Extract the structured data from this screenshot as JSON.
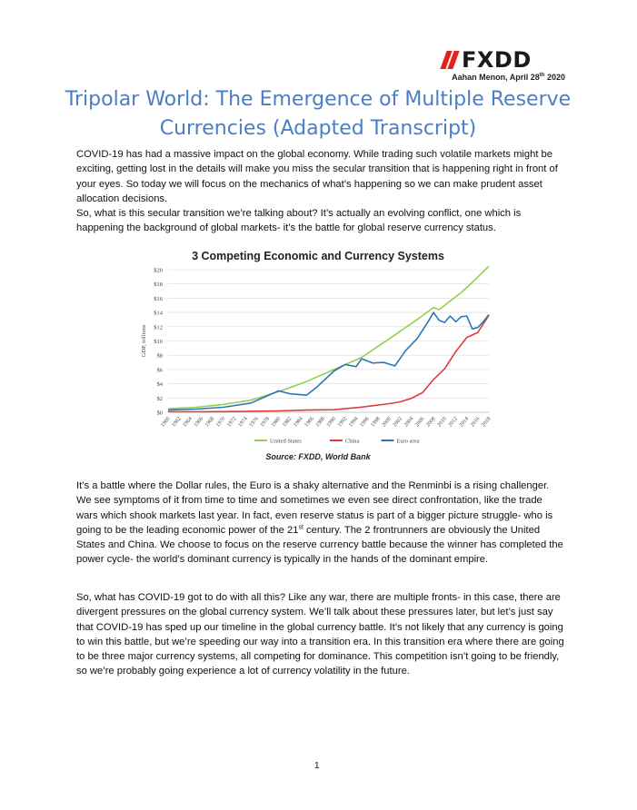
{
  "header": {
    "brand": "FXDD",
    "byline_text": "Aahan Menon, April 28",
    "byline_sup": "th",
    "byline_year": " 2020"
  },
  "title": "Tripolar World: The Emergence of Multiple Reserve Currencies (Adapted Transcript)",
  "paragraphs": {
    "p1": "COVID-19 has had a massive impact on the global economy. While trading such volatile markets might be exciting, getting lost in the details will make you miss the secular transition that is happening right in front of your eyes. So today we will focus on the mechanics of what’s happening so we can make prudent asset allocation decisions.",
    "p2": "So, what is this secular transition we’re talking about? It’s actually an evolving conflict, one which is happening the background of global markets- it’s the battle for global reserve currency status.",
    "p3_a": "It’s a battle where the Dollar rules, the Euro is a shaky alternative and the Renminbi is a rising challenger. We see symptoms of it from time to time and sometimes we even see direct confrontation, like the trade wars which shook markets last year. In fact, even reserve status is part of a bigger picture struggle- who is going to be the leading economic power of the 21",
    "p3_sup": "st",
    "p3_b": " century. The 2 frontrunners are obviously the United States and China. We choose to focus on the reserve currency battle because the winner has completed the power cycle- the world’s dominant currency is typically in the hands of the dominant empire.",
    "p4": "So, what has COVID-19 got to do with all this? Like any war, there are multiple fronts- in this case, there are divergent pressures on the global currency system. We’ll talk about these pressures later, but let’s just say that COVID-19 has sped up our timeline in the global currency battle. It’s not likely that any currency is going to win this battle, but we’re speeding our way into a transition era. In this transition era where there are going to be three major currency systems, all competing for dominance. This competition isn’t going to be friendly, so we’re probably going experience a lot of currency volatility in the future."
  },
  "chart_source": "Source: FXDD, World Bank",
  "page_number": "1",
  "chart_data": {
    "type": "line",
    "title": "3 Competing Economic and Currency Systems",
    "ylabel": "GDP, trillions",
    "xlabel": "",
    "ylim": [
      0,
      20
    ],
    "xlim": [
      1960,
      2018
    ],
    "yticks": [
      "$0",
      "$2",
      "$4",
      "$6",
      "$8",
      "$10",
      "$12",
      "$14",
      "$16",
      "$18",
      "$20"
    ],
    "xticks": [
      "1960",
      "1962",
      "1964",
      "1966",
      "1968",
      "1970",
      "1972",
      "1974",
      "1976",
      "1978",
      "1980",
      "1982",
      "1984",
      "1986",
      "1988",
      "1990",
      "1992",
      "1994",
      "1996",
      "1998",
      "2000",
      "2002",
      "2004",
      "2006",
      "2008",
      "2010",
      "2012",
      "2014",
      "2016",
      "2018"
    ],
    "legend_position": "bottom",
    "grid": true,
    "series": [
      {
        "name": "United States",
        "color": "#92d050",
        "x": [
          1960,
          1965,
          1970,
          1975,
          1980,
          1985,
          1990,
          1995,
          2000,
          2005,
          2008,
          2009,
          2010,
          2013,
          2015,
          2018
        ],
        "y": [
          0.5,
          0.7,
          1.1,
          1.7,
          2.9,
          4.3,
          6.0,
          7.7,
          10.3,
          13.0,
          14.7,
          14.4,
          15.0,
          16.8,
          18.2,
          20.5
        ]
      },
      {
        "name": "China",
        "color": "#e23b3b",
        "x": [
          1960,
          1970,
          1980,
          1985,
          1990,
          1995,
          2000,
          2002,
          2004,
          2006,
          2008,
          2010,
          2012,
          2014,
          2016,
          2018
        ],
        "y": [
          0.06,
          0.09,
          0.19,
          0.31,
          0.36,
          0.73,
          1.21,
          1.47,
          1.96,
          2.75,
          4.6,
          6.1,
          8.5,
          10.5,
          11.2,
          13.6
        ]
      },
      {
        "name": "Euro area",
        "color": "#2e75b6",
        "x": [
          1960,
          1965,
          1970,
          1975,
          1980,
          1982,
          1985,
          1987,
          1990,
          1992,
          1994,
          1995,
          1997,
          1999,
          2001,
          2003,
          2005,
          2007,
          2008,
          2009,
          2010,
          2011,
          2012,
          2013,
          2014,
          2015,
          2016,
          2017,
          2018
        ],
        "y": [
          0.3,
          0.45,
          0.7,
          1.3,
          3.0,
          2.6,
          2.4,
          3.6,
          5.8,
          6.7,
          6.4,
          7.5,
          6.9,
          7.0,
          6.5,
          8.7,
          10.3,
          12.7,
          14.0,
          12.9,
          12.6,
          13.5,
          12.7,
          13.4,
          13.5,
          11.7,
          11.9,
          12.7,
          13.7
        ]
      }
    ]
  }
}
